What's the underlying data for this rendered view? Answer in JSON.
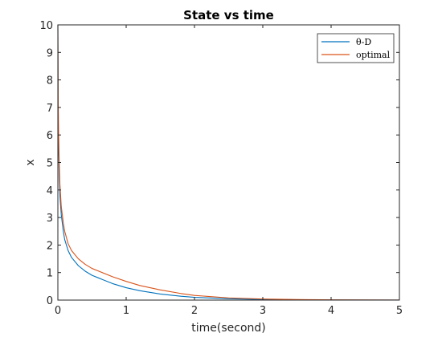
{
  "chart_data": {
    "type": "line",
    "title": "State vs time",
    "xlabel": "time(second)",
    "ylabel": "x",
    "xlim": [
      0,
      5
    ],
    "ylim": [
      0,
      10
    ],
    "xticks": [
      0,
      1,
      2,
      3,
      4,
      5
    ],
    "yticks": [
      0,
      1,
      2,
      3,
      4,
      5,
      6,
      7,
      8,
      9,
      10
    ],
    "grid": false,
    "legend_position": "top-right",
    "series": [
      {
        "name": "θ-D",
        "color": "#0072BD",
        "x": [
          0,
          0.005,
          0.01,
          0.02,
          0.03,
          0.05,
          0.08,
          0.1,
          0.15,
          0.2,
          0.3,
          0.4,
          0.5,
          0.6,
          0.8,
          1.0,
          1.2,
          1.5,
          1.8,
          2.0,
          2.5,
          3.0,
          3.5,
          4.0,
          4.5,
          5.0
        ],
        "y": [
          10,
          6.6,
          5.6,
          4.5,
          3.8,
          3.1,
          2.5,
          2.2,
          1.8,
          1.55,
          1.25,
          1.05,
          0.9,
          0.8,
          0.6,
          0.45,
          0.34,
          0.22,
          0.14,
          0.1,
          0.05,
          0.025,
          0.012,
          0.006,
          0.003,
          0.001
        ]
      },
      {
        "name": "optimal",
        "color": "#D95319",
        "x": [
          0,
          0.005,
          0.01,
          0.02,
          0.03,
          0.05,
          0.08,
          0.1,
          0.15,
          0.2,
          0.3,
          0.4,
          0.5,
          0.6,
          0.8,
          1.0,
          1.2,
          1.5,
          1.8,
          2.0,
          2.5,
          3.0,
          3.5,
          4.0,
          4.5,
          5.0
        ],
        "y": [
          10,
          7.2,
          6.2,
          5.0,
          4.2,
          3.4,
          2.8,
          2.5,
          2.05,
          1.8,
          1.5,
          1.3,
          1.15,
          1.05,
          0.85,
          0.68,
          0.53,
          0.37,
          0.24,
          0.17,
          0.08,
          0.04,
          0.02,
          0.01,
          0.005,
          0.002
        ]
      }
    ]
  }
}
